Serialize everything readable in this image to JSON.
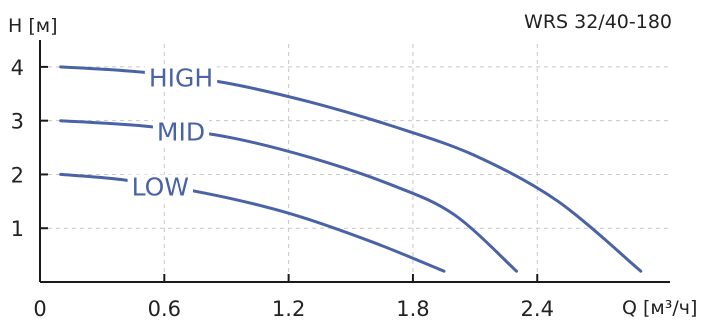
{
  "chart_data": {
    "type": "line",
    "title": "WRS 32/40-180",
    "xlabel": "Q [м³/ч]",
    "ylabel": "H [м]",
    "xlim": [
      0,
      3.2
    ],
    "ylim": [
      0,
      4.5
    ],
    "x_ticks": [
      "0",
      "0.6",
      "1.2",
      "1.8",
      "2.4"
    ],
    "x_tick_values": [
      0,
      0.6,
      1.2,
      1.8,
      2.4
    ],
    "y_ticks": [
      "1",
      "2",
      "3",
      "4"
    ],
    "y_tick_values": [
      1,
      2,
      3,
      4
    ],
    "grid": true,
    "line_color": "#4a63a6",
    "series": [
      {
        "name": "HIGH",
        "points": [
          [
            0.1,
            4.0
          ],
          [
            0.5,
            3.9
          ],
          [
            0.9,
            3.7
          ],
          [
            1.3,
            3.35
          ],
          [
            1.7,
            2.9
          ],
          [
            2.1,
            2.35
          ],
          [
            2.5,
            1.5
          ],
          [
            2.9,
            0.2
          ]
        ]
      },
      {
        "name": "MID",
        "points": [
          [
            0.1,
            3.0
          ],
          [
            0.5,
            2.9
          ],
          [
            0.9,
            2.7
          ],
          [
            1.3,
            2.32
          ],
          [
            1.7,
            1.8
          ],
          [
            2.0,
            1.25
          ],
          [
            2.3,
            0.2
          ]
        ]
      },
      {
        "name": "LOW",
        "points": [
          [
            0.1,
            2.0
          ],
          [
            0.4,
            1.9
          ],
          [
            0.8,
            1.65
          ],
          [
            1.2,
            1.28
          ],
          [
            1.6,
            0.75
          ],
          [
            1.95,
            0.2
          ]
        ]
      }
    ]
  }
}
